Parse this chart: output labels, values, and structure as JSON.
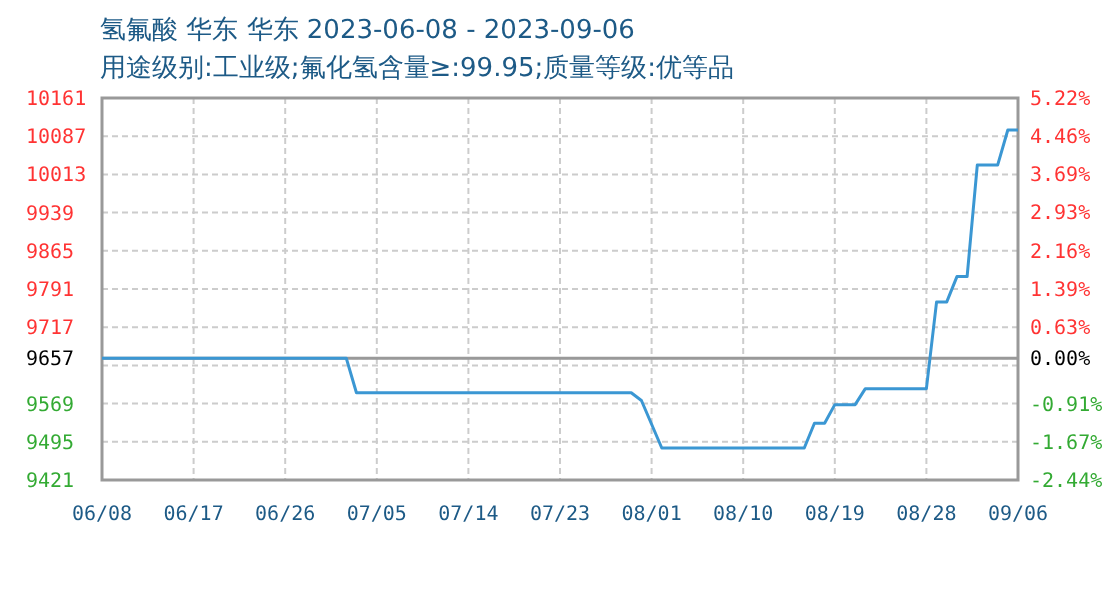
{
  "chart_data": {
    "type": "line",
    "title": "氢氟酸 华东 华东 2023-06-08 - 2023-09-06",
    "subtitle": "用途级别:工业级;氟化氢含量≥:99.95;质量等级:优等品",
    "series": [
      {
        "color": "#3b97d3",
        "x": [
          "--06-08",
          "--07-02",
          "--07-03",
          "--07-30",
          "--07-31",
          "--08-02",
          "--08-16",
          "--08-17",
          "--08-18",
          "--08-19",
          "--08-21",
          "--08-22",
          "--08-28",
          "--08-29",
          "--08-30",
          "--08-31",
          "--09-01",
          "--09-02",
          "--09-04",
          "--09-05",
          "--09-06"
        ],
        "values": [
          9657,
          9657,
          9590,
          9590,
          9575,
          9483,
          9483,
          9531,
          9531,
          9567,
          9567,
          9598,
          9598,
          9766,
          9766,
          9815,
          9815,
          10031,
          10031,
          10099,
          10099
        ]
      }
    ],
    "xlim": [
      "--06-08",
      "--09-06"
    ],
    "xticks": [
      {
        "value": "--06-08",
        "label": "06/08"
      },
      {
        "value": "--06-17",
        "label": "06/17"
      },
      {
        "value": "--06-26",
        "label": "06/26"
      },
      {
        "value": "--07-05",
        "label": "07/05"
      },
      {
        "value": "--07-14",
        "label": "07/14"
      },
      {
        "value": "--07-23",
        "label": "07/23"
      },
      {
        "value": "--08-01",
        "label": "08/01"
      },
      {
        "value": "--08-10",
        "label": "08/10"
      },
      {
        "value": "--08-19",
        "label": "08/19"
      },
      {
        "value": "--08-28",
        "label": "08/28"
      },
      {
        "value": "--09-06",
        "label": "09/06"
      }
    ],
    "ylim": [
      9421,
      10161
    ],
    "yticks": [
      9421,
      9495,
      9569,
      {
        "value": 9643,
        "label": null
      },
      9657,
      9717,
      9791,
      9865,
      9939,
      10013,
      10087,
      10161
    ],
    "y2lim": [
      -2.44,
      5.22
    ],
    "y2ticks": [
      {
        "value": -2.44,
        "label": "-2.44%"
      },
      {
        "value": -1.67,
        "label": "-1.67%"
      },
      {
        "value": -0.91,
        "label": "-0.91%"
      },
      {
        "value": 0,
        "label": "0.00%"
      },
      {
        "value": 0.63,
        "label": "0.63%"
      },
      {
        "value": 1.39,
        "label": "1.39%"
      },
      {
        "value": 2.16,
        "label": "2.16%"
      },
      {
        "value": 2.93,
        "label": "2.93%"
      },
      {
        "value": 3.69,
        "label": "3.69%"
      },
      {
        "value": 4.46,
        "label": "4.46%"
      },
      {
        "value": 5.22,
        "label": "5.22%"
      }
    ],
    "ref_lines": [
      {
        "axis": "y",
        "value": 9657,
        "color": "#999999"
      }
    ],
    "grid": true,
    "marker": "none",
    "line_style": "solid"
  }
}
